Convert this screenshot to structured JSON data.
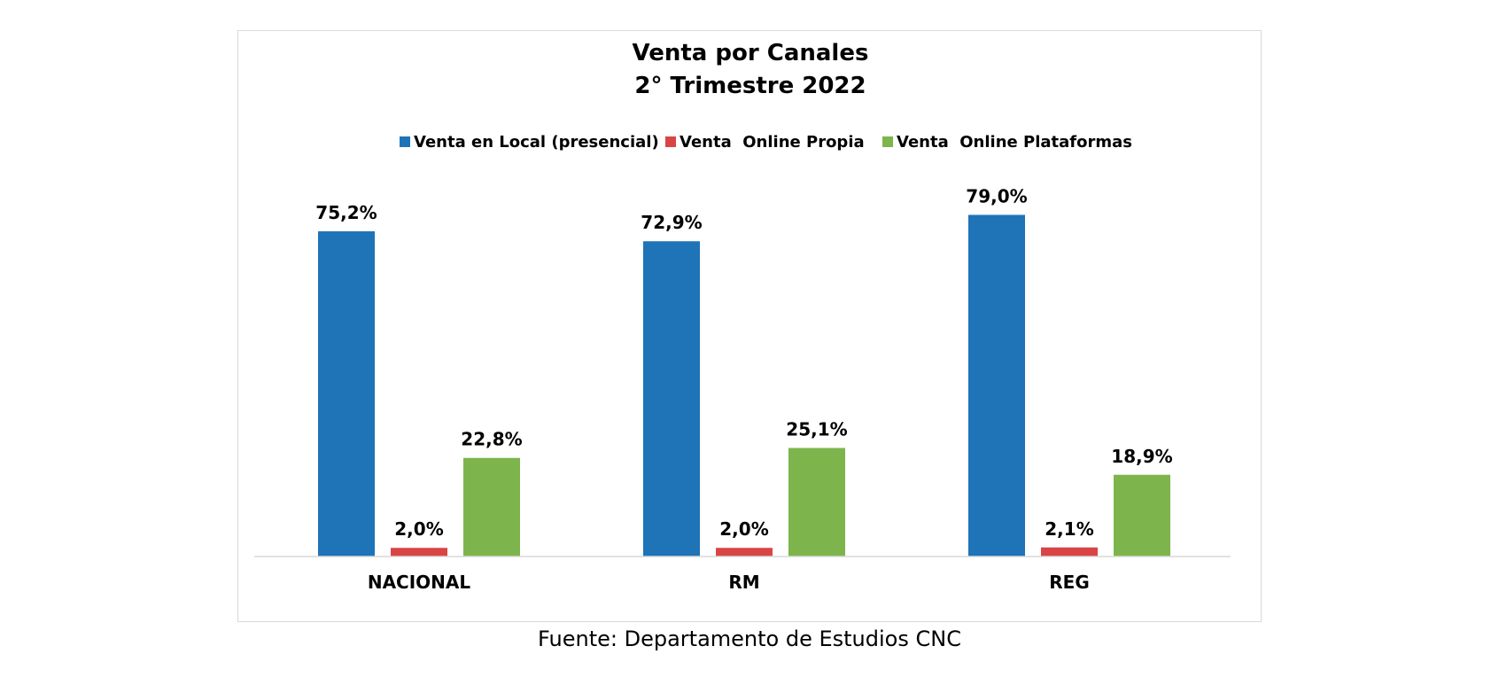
{
  "chart_data": {
    "type": "bar",
    "title": [
      "Venta por Canales",
      "2° Trimestre 2022"
    ],
    "categories": [
      "NACIONAL",
      "RM",
      "REG"
    ],
    "series": [
      {
        "name": "Venta en Local (presencial)",
        "color": "#1f73b7",
        "values": [
          75.2,
          72.9,
          79.0
        ],
        "labels": [
          "75,2%",
          "72,9%",
          "79,0%"
        ]
      },
      {
        "name": "Venta  Online Propia",
        "color": "#d94545",
        "values": [
          2.0,
          2.0,
          2.1
        ],
        "labels": [
          "2,0%",
          "2,0%",
          "2,1%"
        ]
      },
      {
        "name": "Venta  Online Plataformas",
        "color": "#7db54c",
        "values": [
          22.8,
          25.1,
          18.9
        ],
        "labels": [
          "22,8%",
          "25,1%",
          "18,9%"
        ]
      }
    ],
    "ylim": [
      0,
      100
    ],
    "grid": false,
    "legend_position": "top",
    "xlabel": "",
    "ylabel": ""
  },
  "source_note": "Fuente: Departamento de Estudios CNC"
}
